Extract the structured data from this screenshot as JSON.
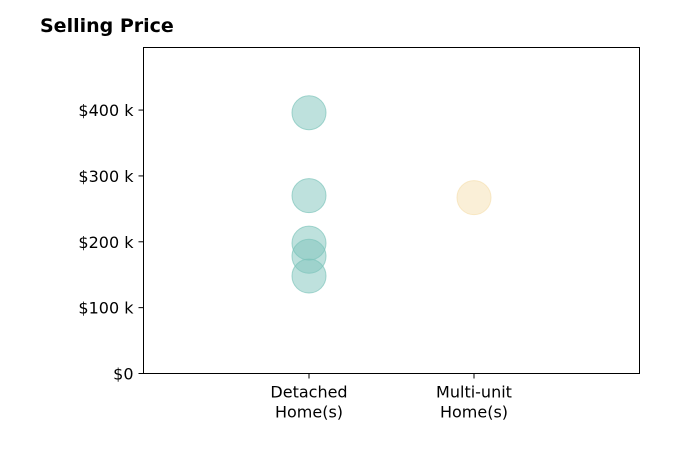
{
  "chart_data": {
    "type": "scatter",
    "title": "Selling Price",
    "xlabel": "",
    "ylabel": "",
    "categories": [
      "Detached\nHome(s)",
      "Multi-unit\nHome(s)"
    ],
    "ylim": [
      0,
      495
    ],
    "yticks": [
      0,
      100,
      200,
      300,
      400
    ],
    "ytick_labels": [
      "$0",
      "$100 k",
      "$200 k",
      "$300 k",
      "$400 k"
    ],
    "grid": false,
    "series": [
      {
        "category": "Detached\nHome(s)",
        "color": "#7ec4bb",
        "values": [
          396,
          270,
          198,
          178,
          148
        ]
      },
      {
        "category": "Multi-unit\nHome(s)",
        "color": "#f5dfb0",
        "values": [
          267
        ]
      }
    ],
    "marker_alpha": 0.5,
    "colors": {
      "detached": "#7ec4bb",
      "multi_unit": "#f5dfb0"
    }
  }
}
